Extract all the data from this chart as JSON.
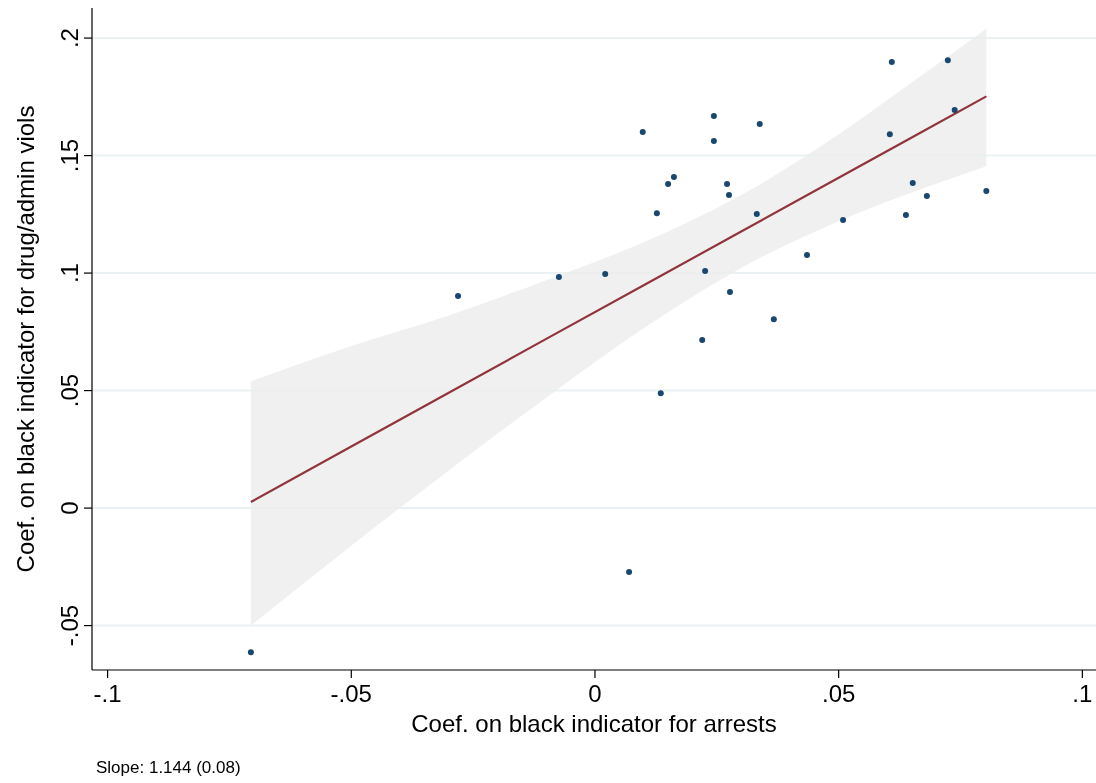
{
  "chart_data": {
    "type": "scatter",
    "xlabel": "Coef. on black indicator for arrests",
    "ylabel": "Coef. on black indicator for drug/admin viols",
    "xlim": [
      -0.1032,
      0.1028
    ],
    "ylim": [
      -0.0689,
      0.2128
    ],
    "xticks": [
      {
        "value": -0.1,
        "label": "-.1"
      },
      {
        "value": -0.05,
        "label": "-.05"
      },
      0,
      {
        "value": 0.05,
        "label": ".05"
      },
      {
        "value": 0.1,
        "label": ".1"
      }
    ],
    "yticks": [
      {
        "value": -0.05,
        "label": "-.05"
      },
      0,
      {
        "value": 0.05,
        "label": ".05"
      },
      {
        "value": 0.1,
        "label": ".1"
      },
      {
        "value": 0.15,
        "label": ".15"
      },
      {
        "value": 0.2,
        "label": ".2"
      }
    ],
    "grid": "y",
    "annotations": [
      "Slope: 1.144 (0.08)"
    ],
    "series": [
      {
        "marker": "circle",
        "color": "#1a476f",
        "x": [
          -0.0706,
          -0.0281,
          -0.0074,
          0.0021,
          0.007,
          0.0098,
          0.0127,
          0.0135,
          0.015,
          0.0162,
          0.022,
          0.0226,
          0.0244,
          0.0244,
          0.0271,
          0.0275,
          0.0277,
          0.0332,
          0.0338,
          0.0367,
          0.0435,
          0.0509,
          0.0605,
          0.0609,
          0.0638,
          0.0652,
          0.0681,
          0.0724,
          0.0738,
          0.0803
        ],
        "values": [
          -0.0613,
          0.0902,
          0.0983,
          0.0996,
          -0.0272,
          0.16,
          0.1255,
          0.0489,
          0.1379,
          0.1409,
          0.0715,
          0.1009,
          0.1668,
          0.1562,
          0.1379,
          0.1332,
          0.0919,
          0.1251,
          0.1634,
          0.0804,
          0.1077,
          0.1226,
          0.1591,
          0.1898,
          0.1247,
          0.1383,
          0.1328,
          0.1906,
          0.1694,
          0.1349
        ]
      },
      {
        "type": "line",
        "color": "#90353b",
        "x": [
          -0.0706,
          -0.05,
          -0.03,
          -0.01,
          0.01,
          0.03,
          0.05,
          0.065,
          0.0803
        ],
        "values": [
          0.0026,
          0.0262,
          0.0491,
          0.072,
          0.0948,
          0.1177,
          0.1406,
          0.1577,
          0.1752
        ],
        "lower": [
          -0.05,
          -0.016,
          0.016,
          0.047,
          0.0765,
          0.1022,
          0.1221,
          0.1343,
          0.1455
        ],
        "upper": [
          0.054,
          0.069,
          0.082,
          0.097,
          0.1131,
          0.1332,
          0.1591,
          0.1811,
          0.204
        ]
      }
    ]
  }
}
